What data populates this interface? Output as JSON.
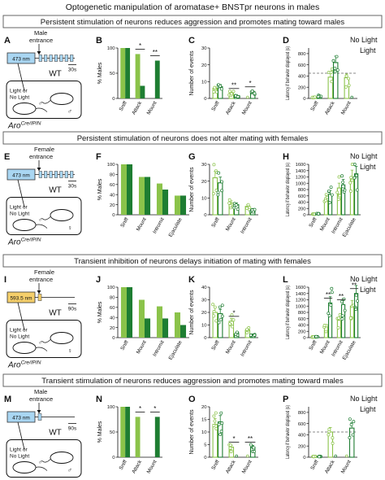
{
  "title": "Optogenetic manipulation of aromatase+ BNSTpr neurons in males",
  "colors": {
    "light_green": "#8bc34a",
    "dark_green": "#1e7d32",
    "laser_blue": "#a9d6f2",
    "laser_yellow": "#f5cf6b",
    "dashed": "#666666"
  },
  "common": {
    "y_percent_label": "% Males",
    "y_events_label": "Number of events",
    "y_latency_label": "Latency if behavior displayed (s)",
    "legend_no_light": "No Light",
    "legend_light": "Light",
    "cage_text_1": "Light or",
    "cage_text_2": "No Light",
    "genotype": "WT",
    "aro_label": "Aro",
    "aro_sup": "Cre/IPIN",
    "male_symbol": "♂",
    "female_symbol": "♀"
  },
  "rows": [
    {
      "header": "Persistent stimulation of neurons reduces aggression and promotes mating toward males",
      "letters": [
        "A",
        "B",
        "C",
        "D"
      ],
      "scheme": {
        "laser": "473 nm",
        "entrance_1": "Male",
        "entrance_2": "entrance",
        "time": "30s",
        "pulse_type": "persistent"
      },
      "chart_data": [
        {
          "type": "bar",
          "ylabel": "% Males",
          "ylim": [
            0,
            100
          ],
          "yticks": [
            0,
            50,
            100
          ],
          "categories": [
            "Sniff",
            "Attack",
            "Mount"
          ],
          "series": [
            {
              "name": "No Light",
              "values": [
                100,
                88,
                0
              ]
            },
            {
              "name": "Light",
              "values": [
                100,
                25,
                75
              ]
            }
          ],
          "annotations": [
            {
              "between": "Attack",
              "text": "*"
            },
            {
              "between": "Mount",
              "text": "**"
            }
          ]
        },
        {
          "type": "bar",
          "ylabel": "Number of events",
          "ylim": [
            0,
            30
          ],
          "yticks": [
            0,
            10,
            20,
            30
          ],
          "categories": [
            "Sniff",
            "Attack",
            "Mount"
          ],
          "series": [
            {
              "name": "No Light",
              "values": [
                6,
                3,
                0
              ]
            },
            {
              "name": "Light",
              "values": [
                7,
                1.5,
                4
              ]
            }
          ],
          "annotations": [
            {
              "between": "Attack",
              "text": "**"
            },
            {
              "between": "Mount",
              "text": "*"
            }
          ]
        },
        {
          "type": "bar",
          "ylabel": "Latency if behavior displayed (s)",
          "ylim": [
            0,
            900
          ],
          "yticks": [
            0,
            200,
            400,
            600,
            800
          ],
          "threshold": 450,
          "categories": [
            "Sniff",
            "Attack",
            "Mount"
          ],
          "series": [
            {
              "name": "No Light",
              "values": [
                20,
                380,
                370
              ]
            },
            {
              "name": "Light",
              "values": [
                40,
                640,
                0
              ]
            }
          ],
          "annotations": []
        }
      ]
    },
    {
      "header": "Persistent stimulation of neurons does not alter mating with females",
      "letters": [
        "E",
        "F",
        "G",
        "H"
      ],
      "scheme": {
        "laser": "473 nm",
        "entrance_1": "Female",
        "entrance_2": "entrance",
        "time": "30s",
        "pulse_type": "persistent"
      },
      "chart_data": [
        {
          "type": "bar",
          "ylabel": "% Males",
          "ylim": [
            0,
            100
          ],
          "yticks": [
            0,
            20,
            40,
            60,
            80,
            100
          ],
          "categories": [
            "Sniff",
            "Mount",
            "Intromit",
            "Ejaculate"
          ],
          "series": [
            {
              "name": "No Light",
              "values": [
                100,
                75,
                62,
                38
              ]
            },
            {
              "name": "Light",
              "values": [
                100,
                75,
                50,
                38
              ]
            }
          ],
          "annotations": []
        },
        {
          "type": "bar",
          "ylabel": "Number of events",
          "ylim": [
            0,
            30
          ],
          "yticks": [
            0,
            10,
            20,
            30
          ],
          "categories": [
            "Sniff",
            "Mount",
            "Intromit"
          ],
          "series": [
            {
              "name": "No Light",
              "values": [
                22,
                7,
                5
              ]
            },
            {
              "name": "Light",
              "values": [
                19,
                6,
                3
              ]
            }
          ],
          "annotations": []
        },
        {
          "type": "bar",
          "ylabel": "Latency if behavior displayed (s)",
          "ylim": [
            0,
            1600
          ],
          "yticks": [
            0,
            200,
            400,
            600,
            800,
            1000,
            1200,
            1400,
            1600
          ],
          "categories": [
            "Sniff",
            "Mount",
            "Intromit",
            "Ejaculate"
          ],
          "series": [
            {
              "name": "No Light",
              "values": [
                20,
                450,
                850,
                1200
              ]
            },
            {
              "name": "Light",
              "values": [
                30,
                650,
                950,
                1300
              ]
            }
          ],
          "annotations": []
        }
      ]
    },
    {
      "header": "Transient inhibition of neurons delays initiation of mating with females",
      "letters": [
        "I",
        "J",
        "K",
        "L"
      ],
      "scheme": {
        "laser": "593.5 nm",
        "entrance_1": "Female",
        "entrance_2": "entrance",
        "time": "90s",
        "pulse_type": "transient"
      },
      "chart_data": [
        {
          "type": "bar",
          "ylabel": "% Males",
          "ylim": [
            0,
            100
          ],
          "yticks": [
            0,
            20,
            40,
            60,
            80,
            100
          ],
          "categories": [
            "Sniff",
            "Mount",
            "Intromit",
            "Ejaculate"
          ],
          "series": [
            {
              "name": "No Light",
              "values": [
                100,
                75,
                62,
                50
              ]
            },
            {
              "name": "Light",
              "values": [
                100,
                38,
                38,
                25
              ]
            }
          ],
          "annotations": []
        },
        {
          "type": "bar",
          "ylabel": "Number of events",
          "ylim": [
            0,
            40
          ],
          "yticks": [
            0,
            10,
            20,
            30,
            40
          ],
          "categories": [
            "Sniff",
            "Mount",
            "Intromit"
          ],
          "series": [
            {
              "name": "No Light",
              "values": [
                20,
                13,
                6
              ]
            },
            {
              "name": "Light",
              "values": [
                19,
                3,
                2
              ]
            }
          ],
          "annotations": [
            {
              "between": "Mount",
              "text": "*"
            }
          ]
        },
        {
          "type": "bar",
          "ylabel": "Latency if behavior displayed (s)",
          "ylim": [
            0,
            1600
          ],
          "yticks": [
            0,
            200,
            400,
            600,
            800,
            1000,
            1200,
            1400,
            1600
          ],
          "categories": [
            "Sniff",
            "Mount",
            "Intromit",
            "Ejaculate"
          ],
          "series": [
            {
              "name": "No Light",
              "values": [
                20,
                350,
                550,
                1000
              ]
            },
            {
              "name": "Light",
              "values": [
                30,
                1100,
                1050,
                1400
              ]
            }
          ],
          "annotations": [
            {
              "between": "Mount",
              "text": "**"
            },
            {
              "between": "Intromit",
              "text": "**"
            },
            {
              "between": "Ejaculate",
              "text": "**"
            }
          ]
        }
      ]
    },
    {
      "header": "Transient stimulation of neurons reduces aggression and promotes mating toward males",
      "letters": [
        "M",
        "N",
        "O",
        "P"
      ],
      "scheme": {
        "laser": "473 nm",
        "entrance_1": "Male",
        "entrance_2": "entrance",
        "time": "90s",
        "pulse_type": "transient"
      },
      "chart_data": [
        {
          "type": "bar",
          "ylabel": "% Males",
          "ylim": [
            0,
            100
          ],
          "yticks": [
            0,
            50,
            100
          ],
          "categories": [
            "Sniff",
            "Attack",
            "Mount"
          ],
          "series": [
            {
              "name": "No Light",
              "values": [
                100,
                80,
                0
              ]
            },
            {
              "name": "Light",
              "values": [
                100,
                0,
                80
              ]
            }
          ],
          "annotations": [
            {
              "between": "Attack",
              "text": "*"
            },
            {
              "between": "Mount",
              "text": "*"
            }
          ]
        },
        {
          "type": "bar",
          "ylabel": "Number of events",
          "ylim": [
            0,
            20
          ],
          "yticks": [
            0,
            5,
            10,
            15,
            20
          ],
          "categories": [
            "Sniff",
            "Attack",
            "Mount"
          ],
          "series": [
            {
              "name": "No Light",
              "values": [
                13,
                4,
                0
              ]
            },
            {
              "name": "Light",
              "values": [
                14,
                0,
                4
              ]
            }
          ],
          "annotations": [
            {
              "between": "Attack",
              "text": "*"
            },
            {
              "between": "Mount",
              "text": "**"
            }
          ]
        },
        {
          "type": "bar",
          "ylabel": "Latency if behavior displayed (s)",
          "ylim": [
            0,
            900
          ],
          "yticks": [
            0,
            200,
            400,
            600,
            800
          ],
          "threshold": 450,
          "categories": [
            "Sniff",
            "Attack",
            "Mount"
          ],
          "series": [
            {
              "name": "No Light",
              "values": [
                10,
                450,
                0
              ]
            },
            {
              "name": "Light",
              "values": [
                15,
                0,
                520
              ]
            }
          ],
          "annotations": []
        }
      ]
    }
  ]
}
